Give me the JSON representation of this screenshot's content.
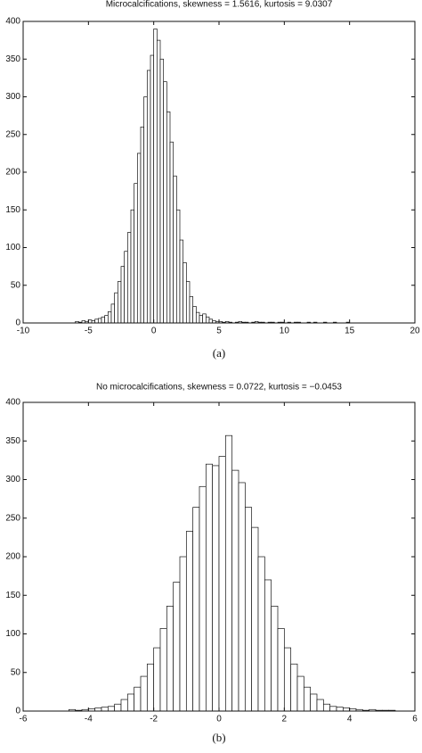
{
  "chart_data": [
    {
      "type": "histogram",
      "title": "Microcalcifications, skewness = 1.5616, kurtosis = 9.0307",
      "caption": "(a)",
      "color": "#ffffff",
      "bins": [
        -6,
        -5.75,
        -5.5,
        -5.25,
        -5,
        -4.75,
        -4.5,
        -4.25,
        -4,
        -3.75,
        -3.5,
        -3.25,
        -3,
        -2.75,
        -2.5,
        -2.25,
        -2,
        -1.75,
        -1.5,
        -1.25,
        -1,
        -0.75,
        -0.5,
        -0.25,
        0,
        0.25,
        0.5,
        0.75,
        1,
        1.25,
        1.5,
        1.75,
        2,
        2.25,
        2.5,
        2.75,
        3,
        3.25,
        3.5,
        3.75,
        4,
        4.25,
        4.5,
        4.75,
        5,
        5.25,
        5.5,
        5.75,
        6,
        6.25,
        6.5,
        6.75,
        7,
        7.25,
        7.5,
        7.75,
        8,
        8.25,
        8.5,
        8.75,
        9,
        9.25,
        9.5,
        9.75,
        10,
        10.25,
        10.5,
        10.75,
        11,
        11.25,
        11.5,
        11.75,
        12,
        12.25,
        12.5,
        12.75,
        13,
        13.25,
        13.5,
        13.75,
        14,
        14.25,
        14.5,
        14.75,
        15
      ],
      "values": [
        2,
        1,
        3,
        2,
        4,
        3,
        5,
        6,
        8,
        10,
        15,
        25,
        40,
        55,
        75,
        95,
        120,
        150,
        185,
        225,
        260,
        300,
        335,
        355,
        390,
        375,
        350,
        320,
        280,
        240,
        195,
        150,
        110,
        80,
        55,
        35,
        22,
        14,
        10,
        12,
        8,
        5,
        3,
        2,
        2,
        1,
        2,
        1,
        0,
        1,
        2,
        1,
        1,
        0,
        1,
        2,
        1,
        1,
        0,
        1,
        1,
        0,
        1,
        1,
        0,
        1,
        0,
        1,
        1,
        0,
        0,
        1,
        0,
        1,
        0,
        0,
        1,
        0,
        0,
        1,
        0,
        0,
        0,
        1
      ],
      "xlim": [
        -10,
        20
      ],
      "xticks": [
        -10,
        -5,
        0,
        5,
        10,
        15,
        20
      ],
      "ylim": [
        0,
        400
      ],
      "yticks": [
        0,
        50,
        100,
        150,
        200,
        250,
        300,
        350,
        400
      ]
    },
    {
      "type": "histogram",
      "title": "No microcalcifications, skewness = 0.0722, kurtosis = −0.0453",
      "caption": "(b)",
      "color": "#ffffff",
      "bins": [
        -4.6,
        -4.4,
        -4.2,
        -4,
        -3.8,
        -3.6,
        -3.4,
        -3.2,
        -3,
        -2.8,
        -2.6,
        -2.4,
        -2.2,
        -2,
        -1.8,
        -1.6,
        -1.4,
        -1.2,
        -1,
        -0.8,
        -0.6,
        -0.4,
        -0.2,
        0,
        0.2,
        0.4,
        0.6,
        0.8,
        1,
        1.2,
        1.4,
        1.6,
        1.8,
        2,
        2.2,
        2.4,
        2.6,
        2.8,
        3,
        3.2,
        3.4,
        3.6,
        3.8,
        4,
        4.2,
        4.4,
        4.6,
        4.8,
        5,
        5.2,
        5.4
      ],
      "values": [
        2,
        1,
        2,
        3,
        4,
        5,
        6,
        9,
        15,
        22,
        31,
        45,
        61,
        82,
        107,
        136,
        167,
        200,
        233,
        264,
        291,
        320,
        318,
        330,
        357,
        312,
        296,
        264,
        238,
        200,
        170,
        136,
        107,
        82,
        61,
        45,
        31,
        22,
        15,
        9,
        6,
        5,
        4,
        3,
        2,
        1,
        2,
        1,
        1,
        1
      ],
      "xlim": [
        -6,
        6
      ],
      "xticks": [
        -6,
        -4,
        -2,
        0,
        2,
        4,
        6
      ],
      "ylim": [
        0,
        400
      ],
      "yticks": [
        0,
        50,
        100,
        150,
        200,
        250,
        300,
        350,
        400
      ]
    }
  ]
}
